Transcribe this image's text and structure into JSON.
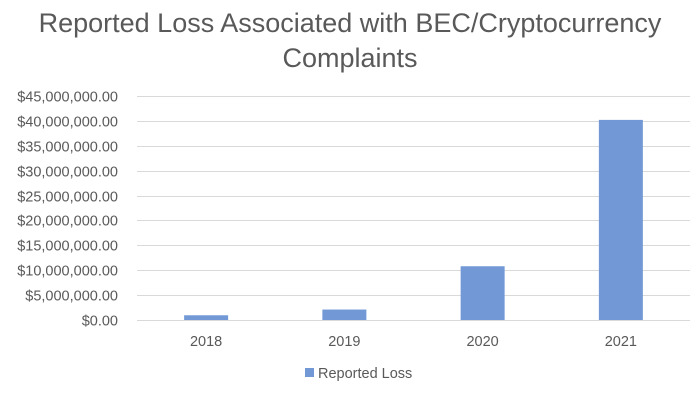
{
  "chart_data": {
    "type": "bar",
    "title_lines": [
      "Reported Loss Associated with BEC/Cryptocurrency",
      "Complaints"
    ],
    "categories": [
      "2018",
      "2019",
      "2020",
      "2021"
    ],
    "series": [
      {
        "name": "Reported Loss",
        "values": [
          950000,
          2100000,
          10800000,
          40200000
        ],
        "color": "#7299d6"
      }
    ],
    "ylim": [
      0,
      45000000
    ],
    "y_ticks": [
      {
        "value": 0,
        "label": "$0.00"
      },
      {
        "value": 5000000,
        "label": "$5,000,000.00"
      },
      {
        "value": 10000000,
        "label": "$10,000,000.00"
      },
      {
        "value": 15000000,
        "label": "$15,000,000.00"
      },
      {
        "value": 20000000,
        "label": "$20,000,000.00"
      },
      {
        "value": 25000000,
        "label": "$25,000,000.00"
      },
      {
        "value": 30000000,
        "label": "$30,000,000.00"
      },
      {
        "value": 35000000,
        "label": "$35,000,000.00"
      },
      {
        "value": 40000000,
        "label": "$40,000,000.00"
      },
      {
        "value": 45000000,
        "label": "$45,000,000.00"
      }
    ],
    "grid": true,
    "grid_color": "#d9d9d9",
    "legend_position": "bottom"
  }
}
